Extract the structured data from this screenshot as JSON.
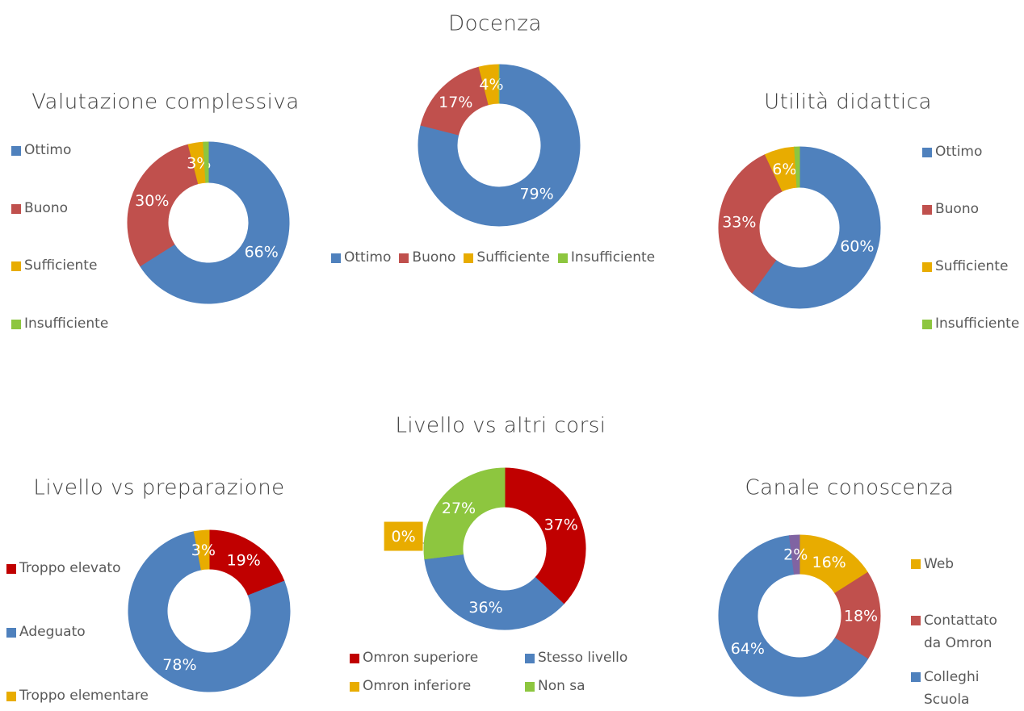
{
  "chart_data": [
    {
      "type": "donut",
      "title": "Valutazione complessiva",
      "categories": [
        "Ottimo",
        "Buono",
        "Sufficiente",
        "Insufficiente"
      ],
      "values": [
        66,
        30,
        3,
        1
      ],
      "value_labels": [
        "66%",
        "30%",
        "3%",
        null
      ],
      "colors": [
        "#4f81bd",
        "#c0504d",
        "#e8ac00",
        "#8dc63f"
      ],
      "legend": "left"
    },
    {
      "type": "donut",
      "title": "Docenza",
      "categories": [
        "Ottimo",
        "Buono",
        "Sufficiente",
        "Insufficiente"
      ],
      "values": [
        79,
        17,
        4,
        0
      ],
      "value_labels": [
        "79%",
        "17%",
        "4%",
        null
      ],
      "colors": [
        "#4f81bd",
        "#c0504d",
        "#e8ac00",
        "#8dc63f"
      ],
      "legend": "bottom"
    },
    {
      "type": "donut",
      "title": "Utilità didattica",
      "categories": [
        "Ottimo",
        "Buono",
        "Sufficiente",
        "Insufficiente"
      ],
      "values": [
        60,
        33,
        6,
        1
      ],
      "value_labels": [
        "60%",
        "33%",
        "6%",
        null
      ],
      "colors": [
        "#4f81bd",
        "#c0504d",
        "#e8ac00",
        "#8dc63f"
      ],
      "legend": "right"
    },
    {
      "type": "donut",
      "title": "Livello vs preparazione",
      "categories": [
        "Troppo elevato",
        "Adeguato",
        "Troppo elementare"
      ],
      "values": [
        19,
        78,
        3
      ],
      "value_labels": [
        "19%",
        "78%",
        "3%"
      ],
      "colors": [
        "#c00000",
        "#4f81bd",
        "#e8ac00"
      ],
      "legend": "left"
    },
    {
      "type": "donut",
      "title": "Livello vs altri corsi",
      "categories": [
        "Omron superiore",
        "Stesso livello",
        "Omron inferiore",
        "Non sa"
      ],
      "values": [
        37,
        36,
        0,
        27
      ],
      "value_labels": [
        "37%",
        "36%",
        "0%",
        "27%"
      ],
      "colors": [
        "#c00000",
        "#4f81bd",
        "#e8ac00",
        "#8dc63f"
      ],
      "legend": "bottom"
    },
    {
      "type": "donut",
      "title": "Canale conoscenza",
      "categories": [
        "Web",
        "Contattato da Omron",
        "Colleghi Scuola",
        null
      ],
      "values": [
        16,
        18,
        64,
        2
      ],
      "value_labels": [
        "16%",
        "18%",
        "64%",
        "2%"
      ],
      "colors": [
        "#e8ac00",
        "#c0504d",
        "#4f81bd",
        "#8064a2"
      ],
      "legend": "right"
    }
  ]
}
